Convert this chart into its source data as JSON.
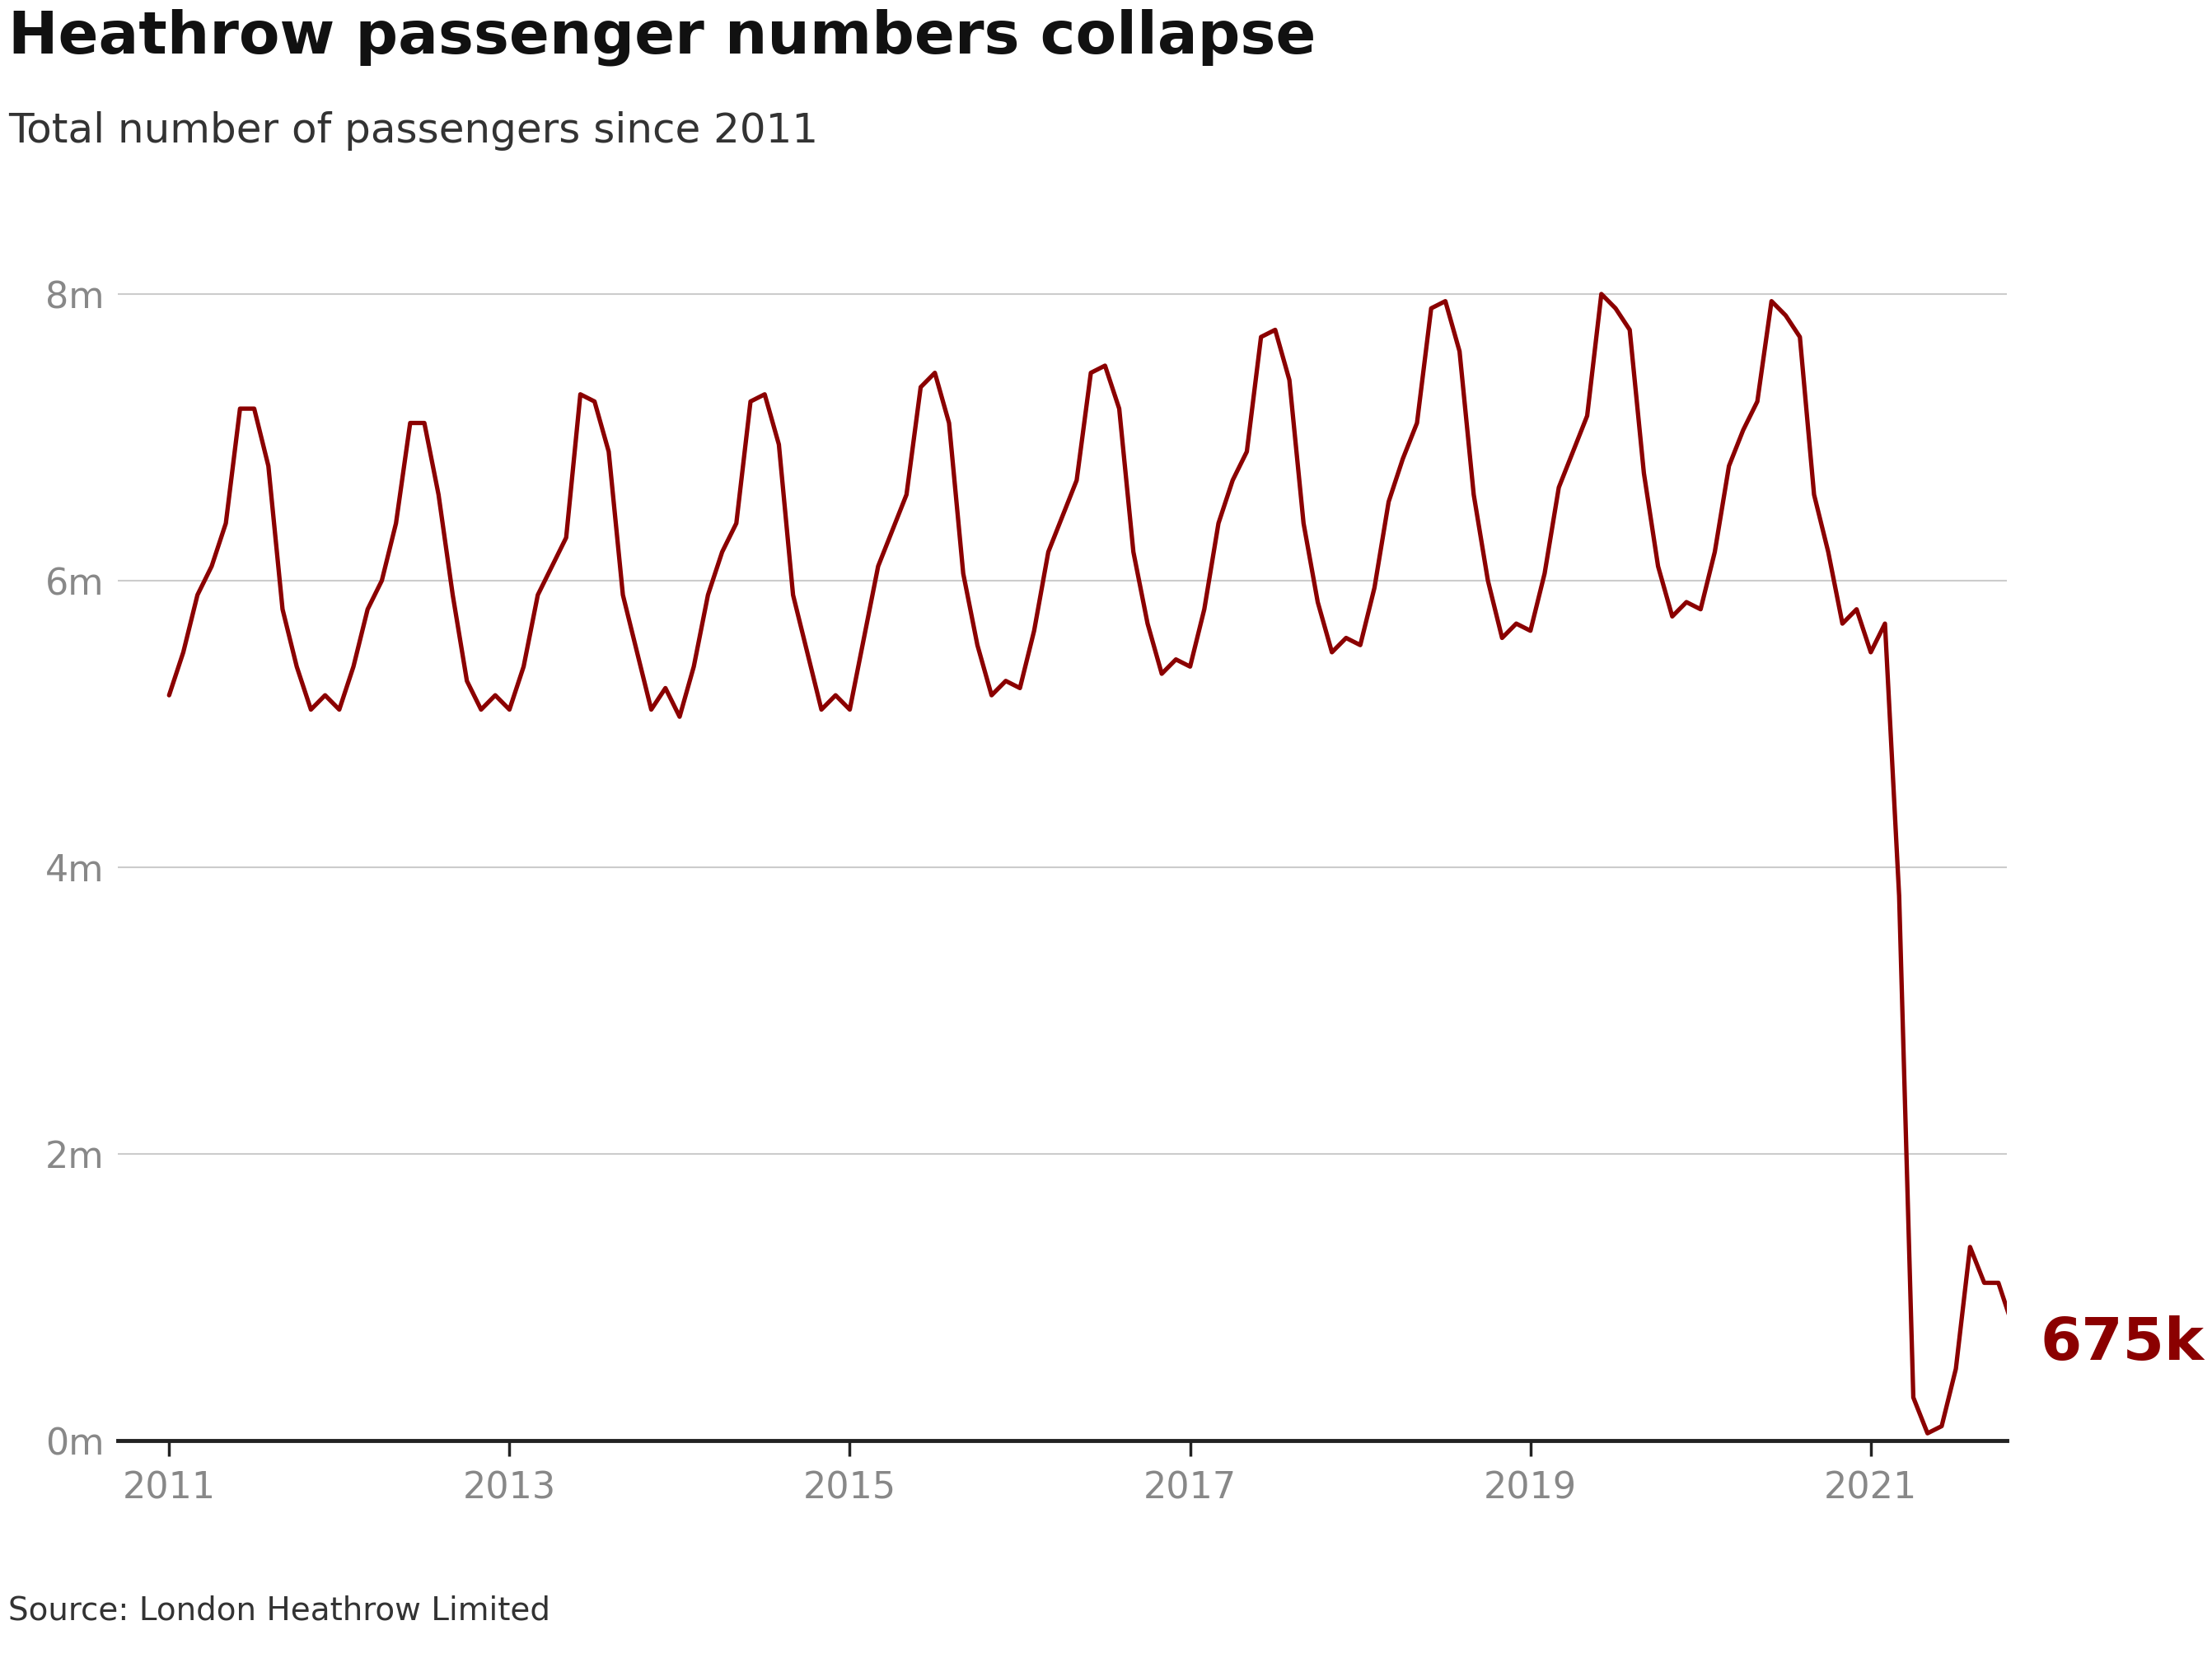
{
  "title": "Heathrow passenger numbers collapse",
  "subtitle": "Total number of passengers since 2011",
  "source": "Source: London Heathrow Limited",
  "line_color": "#8B0000",
  "background_color": "#ffffff",
  "title_fontsize": 52,
  "subtitle_fontsize": 36,
  "tick_fontsize": 32,
  "annotation_fontsize": 52,
  "source_fontsize": 28,
  "ylim": [
    0,
    8500000
  ],
  "yticks": [
    0,
    2000000,
    4000000,
    6000000,
    8000000
  ],
  "ytick_labels": [
    "0m",
    "2m",
    "4m",
    "6m",
    "8m"
  ],
  "xtick_labels": [
    "2011",
    "2013",
    "2015",
    "2017",
    "2019",
    "2021"
  ],
  "xtick_positions": [
    2011,
    2013,
    2015,
    2017,
    2019,
    2021
  ],
  "annotation_text": "675k",
  "xlim_start": 2010.7,
  "xlim_end": 2021.8,
  "data_start_year": 2011.0,
  "data": [
    5200000,
    5500000,
    5900000,
    6100000,
    6400000,
    7200000,
    7200000,
    6800000,
    5800000,
    5400000,
    5100000,
    5200000,
    5100000,
    5400000,
    5800000,
    6000000,
    6400000,
    7100000,
    7100000,
    6600000,
    5900000,
    5300000,
    5100000,
    5200000,
    5100000,
    5400000,
    5900000,
    6100000,
    6300000,
    7300000,
    7250000,
    6900000,
    5900000,
    5500000,
    5100000,
    5250000,
    5050000,
    5400000,
    5900000,
    6200000,
    6400000,
    7250000,
    7300000,
    6950000,
    5900000,
    5500000,
    5100000,
    5200000,
    5100000,
    5600000,
    6100000,
    6350000,
    6600000,
    7350000,
    7450000,
    7100000,
    6050000,
    5550000,
    5200000,
    5300000,
    5250000,
    5650000,
    6200000,
    6450000,
    6700000,
    7450000,
    7500000,
    7200000,
    6200000,
    5700000,
    5350000,
    5450000,
    5400000,
    5800000,
    6400000,
    6700000,
    6900000,
    7700000,
    7750000,
    7400000,
    6400000,
    5850000,
    5500000,
    5600000,
    5550000,
    5950000,
    6550000,
    6850000,
    7100000,
    7900000,
    7950000,
    7600000,
    6600000,
    6000000,
    5600000,
    5700000,
    5650000,
    6050000,
    6650000,
    6900000,
    7150000,
    8000000,
    7900000,
    7750000,
    6750000,
    6100000,
    5750000,
    5850000,
    5800000,
    6200000,
    6800000,
    7050000,
    7250000,
    7950000,
    7850000,
    7700000,
    6600000,
    6200000,
    5700000,
    5800000,
    5500000,
    5700000,
    3800000,
    300000,
    50000,
    100000,
    500000,
    1350000,
    1100000,
    1100000,
    800000,
    675000
  ]
}
